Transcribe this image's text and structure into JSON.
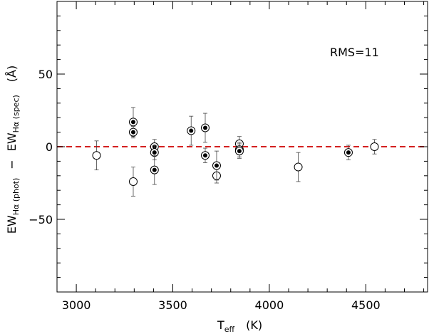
{
  "chart_data": {
    "type": "scatter",
    "title": "",
    "xlabel_main": "T",
    "xlabel_sub": "eff",
    "xlabel_unit": "(K)",
    "ylabel_parts": {
      "ew1": "EW",
      "sub1": "Hα (phot)",
      "minus": "−",
      "ew2": "EW",
      "sub2": "Hα (spec)",
      "unit": "(Å)"
    },
    "xlim": [
      2900,
      4820
    ],
    "ylim": [
      -100,
      100
    ],
    "x_ticks": [
      3000,
      3500,
      4000,
      4500
    ],
    "x_tick_labels": [
      "3000",
      "3500",
      "4000",
      "4500"
    ],
    "y_ticks": [
      -50,
      0,
      50
    ],
    "y_tick_labels": [
      "−50",
      "0",
      "50"
    ],
    "reference_line": {
      "y": 0,
      "style": "dashed",
      "color": "#d42020"
    },
    "annotation": "RMS=11",
    "grid": false,
    "series": [
      {
        "marker": "open-circle",
        "points": [
          {
            "x": 3105,
            "y": -6,
            "err": 10
          },
          {
            "x": 3295,
            "y": -24,
            "err": 10
          },
          {
            "x": 3727,
            "y": -20,
            "err": 5
          },
          {
            "x": 3845,
            "y": 2,
            "err": 5
          },
          {
            "x": 4150,
            "y": -14,
            "err": 10
          },
          {
            "x": 4545,
            "y": 0,
            "err": 5
          }
        ]
      },
      {
        "marker": "circle-with-dot",
        "points": [
          {
            "x": 3295,
            "y": 17,
            "err": 10
          },
          {
            "x": 3295,
            "y": 10,
            "err": 4
          },
          {
            "x": 3405,
            "y": 0,
            "err": 5
          },
          {
            "x": 3405,
            "y": -4,
            "err": 5
          },
          {
            "x": 3405,
            "y": -16,
            "err": 10
          },
          {
            "x": 3595,
            "y": 11,
            "err": 10
          },
          {
            "x": 3668,
            "y": 13,
            "err": 10
          },
          {
            "x": 3668,
            "y": -6,
            "err": 5
          },
          {
            "x": 3727,
            "y": -13,
            "err": 10
          },
          {
            "x": 3845,
            "y": -2,
            "err": 5
          },
          {
            "x": 3845,
            "y": -3,
            "err": 5
          },
          {
            "x": 4410,
            "y": -4,
            "err": 5
          }
        ]
      }
    ]
  }
}
